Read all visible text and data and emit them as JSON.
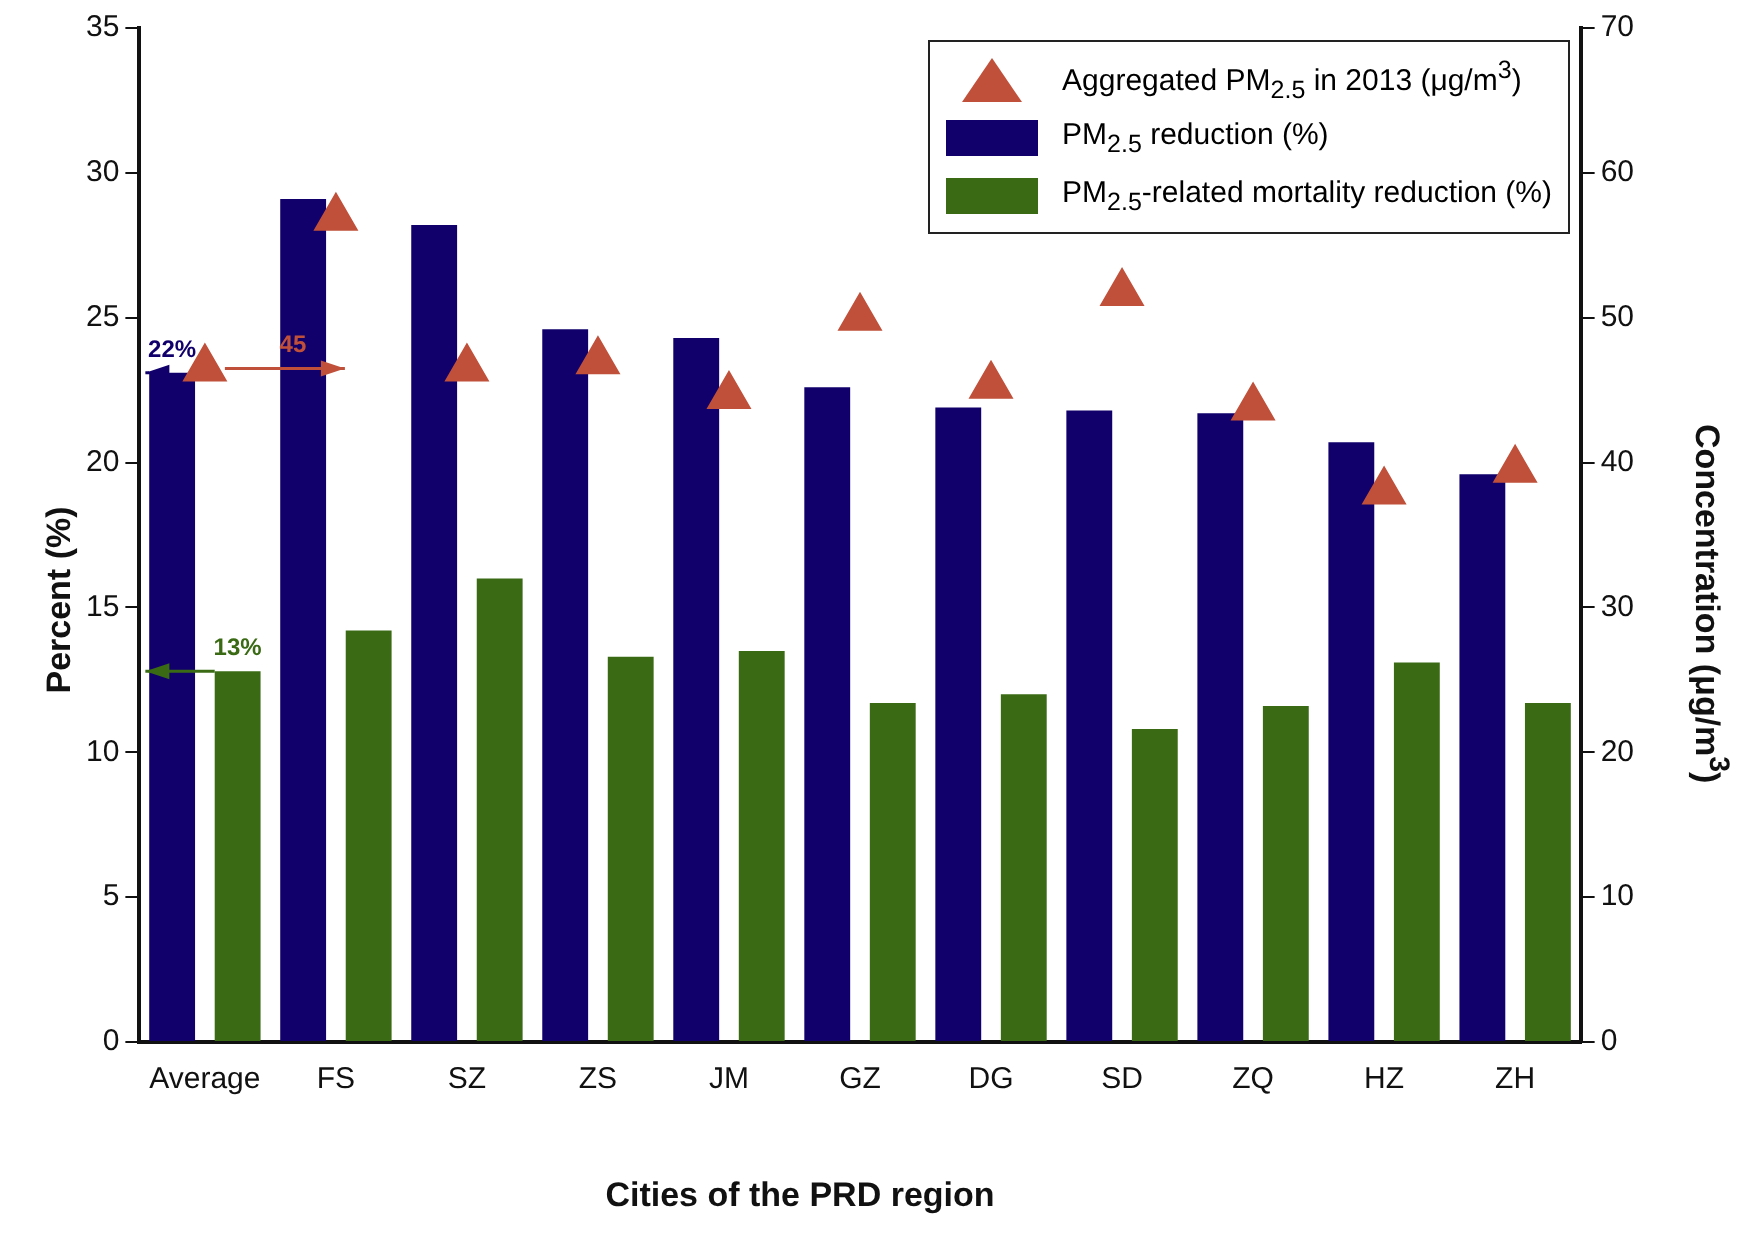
{
  "chart_data": {
    "type": "bar",
    "xlabel": "Cities of the PRD region",
    "ylabel": "Percent (%)",
    "y2label": "Concentration (μg/m$^{3}$)",
    "categories": [
      "Average",
      "FS",
      "SZ",
      "ZS",
      "JM",
      "GZ",
      "DG",
      "SD",
      "ZQ",
      "HZ",
      "ZH"
    ],
    "series": [
      {
        "name": "Aggregated PM$_{2.5}$ in 2013 (μg/m$^{3}$)",
        "type": "scatter",
        "axis": "y2",
        "marker": "triangle",
        "color": "#c0503a",
        "x": [
          "Average",
          "FS",
          "SZ",
          "ZS",
          "JM",
          "GZ",
          "DG",
          "SD",
          "ZQ",
          "HZ",
          "ZH"
        ],
        "values": [
          46.5,
          56.9,
          46.5,
          47,
          44.6,
          50,
          45.3,
          51.7,
          43.8,
          38,
          39.5
        ]
      },
      {
        "name": "PM$_{2.5}$ reduction (%)",
        "color": "#11006b",
        "values": [
          23.1,
          29.1,
          28.2,
          24.6,
          24.3,
          22.6,
          21.9,
          21.8,
          21.7,
          20.7,
          19.6
        ]
      },
      {
        "name": "PM$_{2.5}$-related mortality reduction (%)",
        "color": "#3a6b14",
        "values": [
          12.8,
          14.2,
          16.0,
          13.3,
          13.5,
          11.7,
          12.0,
          10.8,
          11.6,
          13.1,
          11.7
        ]
      }
    ],
    "ylim": [
      0,
      35
    ],
    "yticks": [
      0,
      5,
      10,
      15,
      20,
      25,
      30,
      35
    ],
    "y2lim": [
      0,
      70
    ],
    "y2ticks": [
      0,
      10,
      20,
      30,
      40,
      50,
      60,
      70
    ],
    "grid": false,
    "legend": "top right",
    "annotations": [
      "45",
      {
        "text": "22%",
        "x": "Average",
        "y": 23.1
      },
      {
        "text": "13%",
        "y": 12.8
      }
    ]
  }
}
